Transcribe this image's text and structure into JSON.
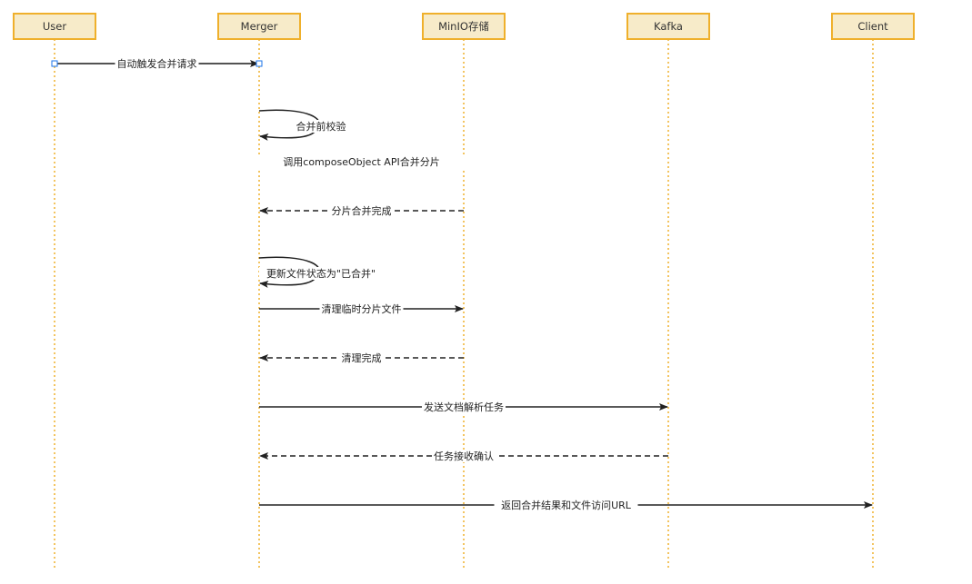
{
  "colors": {
    "participant_fill": "#f7ebc9",
    "participant_border": "#efb02c",
    "lifeline": "#efb02c",
    "arrow": "#222222",
    "selection": "#1a73e8"
  },
  "participants": [
    {
      "id": "user",
      "label": "User"
    },
    {
      "id": "merger",
      "label": "Merger"
    },
    {
      "id": "minio",
      "label": "MinIO存储"
    },
    {
      "id": "kafka",
      "label": "Kafka"
    },
    {
      "id": "client",
      "label": "Client"
    }
  ],
  "messages": [
    {
      "from": 0,
      "to": 1,
      "label": "自动触发合并请求",
      "style": "solid",
      "selected": true
    },
    {
      "from": 1,
      "to": 1,
      "label": "合并前校验",
      "style": "solid"
    },
    {
      "from": 1,
      "to": 2,
      "label": "调用composeObject API合并分片",
      "style": "solid"
    },
    {
      "from": 2,
      "to": 1,
      "label": "分片合并完成",
      "style": "dashed"
    },
    {
      "from": 1,
      "to": 1,
      "label": "更新文件状态为\"已合并\"",
      "style": "solid"
    },
    {
      "from": 1,
      "to": 2,
      "label": "清理临时分片文件",
      "style": "solid"
    },
    {
      "from": 2,
      "to": 1,
      "label": "清理完成",
      "style": "dashed"
    },
    {
      "from": 1,
      "to": 3,
      "label": "发送文档解析任务",
      "style": "solid"
    },
    {
      "from": 3,
      "to": 1,
      "label": "任务接收确认",
      "style": "dashed"
    },
    {
      "from": 1,
      "to": 4,
      "label": "返回合并结果和文件访问URL",
      "style": "solid"
    }
  ]
}
